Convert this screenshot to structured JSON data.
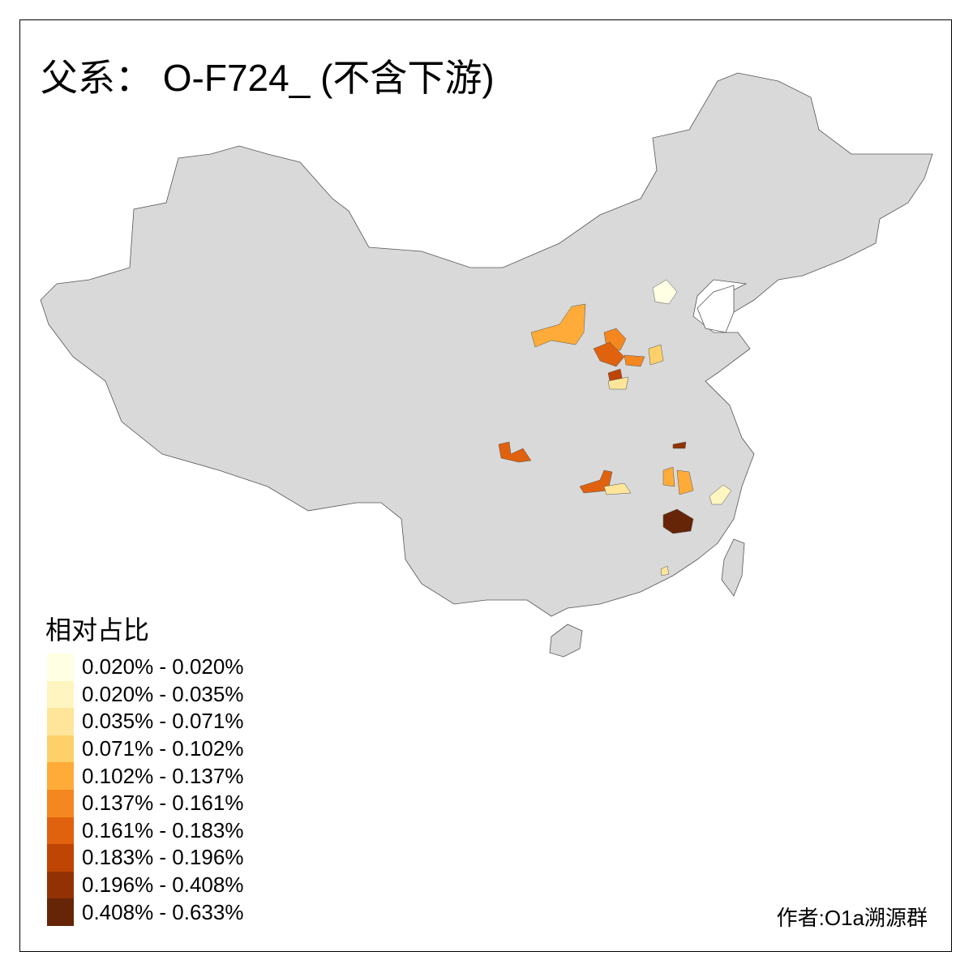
{
  "title": "父系： O-F724_ (不含下游)",
  "legend": {
    "title": "相对占比",
    "items": [
      {
        "label": "0.020% - 0.020%",
        "color": "#FFFFE4"
      },
      {
        "label": "0.020% - 0.035%",
        "color": "#FFF5C0"
      },
      {
        "label": "0.035% - 0.071%",
        "color": "#FEE59A"
      },
      {
        "label": "0.071% - 0.102%",
        "color": "#FED06A"
      },
      {
        "label": "0.102% - 0.137%",
        "color": "#FEAB3A"
      },
      {
        "label": "0.137% - 0.161%",
        "color": "#F4871F"
      },
      {
        "label": "0.161% - 0.183%",
        "color": "#E0620E"
      },
      {
        "label": "0.183% - 0.196%",
        "color": "#BF4504"
      },
      {
        "label": "0.196% - 0.408%",
        "color": "#923204"
      },
      {
        "label": "0.408% - 0.633%",
        "color": "#662506"
      }
    ]
  },
  "credit": "作者:O1a溯源群",
  "map": {
    "base_color": "#D9D9D9",
    "border_color": "#555555"
  }
}
